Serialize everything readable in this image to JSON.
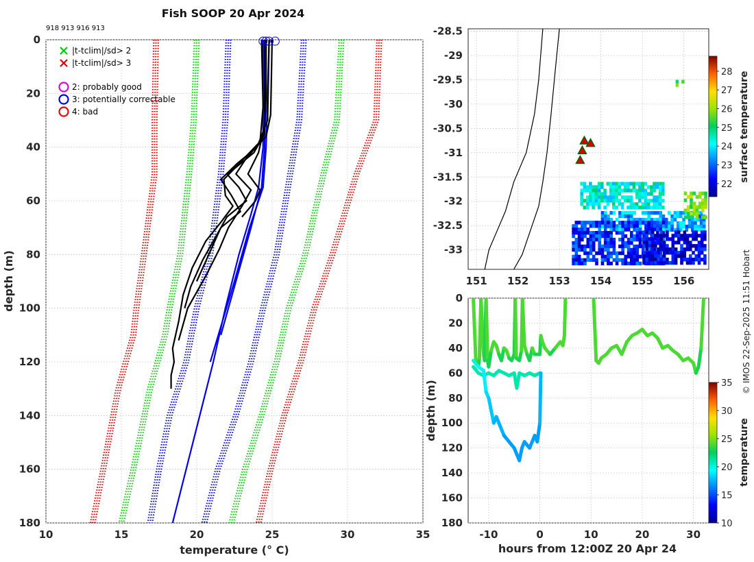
{
  "title": "Fish SOOP 20 Apr 2024",
  "fish_ids": "918 913 916 913",
  "credit": "© IMOS 22-Sep-2025 11:51 Hobart",
  "colors": {
    "flag2": "#00cc00",
    "flag3": "#dd0000",
    "blue": "#0000ee",
    "good": "#dd00dd",
    "bad": "#ee0000"
  },
  "legend": {
    "items": [
      {
        "marker": "x",
        "color": "#00cc00",
        "label": "|t-tclim|/sd> 2"
      },
      {
        "marker": "x",
        "color": "#dd0000",
        "label": "|t-tclim|/sd> 3"
      },
      {
        "marker": "o",
        "color": "#dd00dd",
        "label": "2: probably good"
      },
      {
        "marker": "o",
        "color": "#0000ee",
        "label": "3: potentially correctable"
      },
      {
        "marker": "o",
        "color": "#ee0000",
        "label": "4: bad"
      }
    ]
  },
  "chart_data": [
    {
      "id": "profile",
      "type": "line",
      "xlabel": "temperature (° C)",
      "ylabel": "depth (m)",
      "xlim": [
        10,
        35
      ],
      "ylim": [
        180,
        0
      ],
      "xticks": [
        10,
        15,
        20,
        25,
        30,
        35
      ],
      "yticks": [
        0,
        20,
        40,
        60,
        80,
        100,
        120,
        140,
        160,
        180
      ],
      "climatology_bounds": [
        {
          "name": "tclim-3sd",
          "color": "#dd0000",
          "depth": [
            0,
            30,
            50,
            80,
            100,
            110,
            130,
            160,
            180
          ],
          "values": [
            17.3,
            17.2,
            17.2,
            16.5,
            16.0,
            15.8,
            14.8,
            13.8,
            13.1
          ]
        },
        {
          "name": "tclim-2sd",
          "color": "#00cc00",
          "depth": [
            0,
            30,
            50,
            80,
            100,
            110,
            130,
            160,
            180
          ],
          "values": [
            20.0,
            19.8,
            19.5,
            18.9,
            18.2,
            17.9,
            16.9,
            15.8,
            15.0
          ]
        },
        {
          "name": "tclim-1sd",
          "color": "#0000ee",
          "depth": [
            0,
            30,
            50,
            80,
            100,
            120,
            140,
            160,
            180
          ],
          "values": [
            22.1,
            21.9,
            21.6,
            20.9,
            20.0,
            19.3,
            18.2,
            17.5,
            16.9
          ]
        },
        {
          "name": "tclim+1sd",
          "color": "#0000ee",
          "depth": [
            0,
            30,
            50,
            80,
            100,
            120,
            140,
            160,
            180
          ],
          "values": [
            27.1,
            26.8,
            26.2,
            25.3,
            24.4,
            23.6,
            22.6,
            21.4,
            20.5
          ]
        },
        {
          "name": "tclim+2sd",
          "color": "#00cc00",
          "depth": [
            0,
            30,
            50,
            80,
            100,
            120,
            140,
            160,
            180
          ],
          "values": [
            29.6,
            29.3,
            28.4,
            27.2,
            26.1,
            25.3,
            24.3,
            23.2,
            22.3
          ]
        },
        {
          "name": "tclim+3sd",
          "color": "#dd0000",
          "depth": [
            0,
            30,
            50,
            80,
            100,
            120,
            140,
            160,
            180
          ],
          "values": [
            32.1,
            31.9,
            30.6,
            29.0,
            27.8,
            26.9,
            25.8,
            24.9,
            24.1
          ]
        }
      ],
      "blue_profiles": [
        {
          "depth": [
            0,
            40,
            55,
            65,
            80,
            100,
            120,
            140,
            160,
            180
          ],
          "values": [
            24.4,
            24.4,
            24.1,
            23.6,
            22.8,
            21.9,
            21.1,
            20.2,
            19.3,
            18.4
          ]
        },
        {
          "depth": [
            0,
            40,
            55,
            70,
            90,
            110
          ],
          "values": [
            24.6,
            24.5,
            24.3,
            23.6,
            22.6,
            21.6
          ]
        },
        {
          "depth": [
            0,
            40,
            55,
            70,
            90,
            120
          ],
          "values": [
            24.8,
            24.6,
            24.4,
            23.5,
            22.5,
            20.9
          ]
        }
      ],
      "black_profiles": [
        {
          "depth": [
            0,
            20,
            35,
            42,
            48,
            52,
            58,
            62,
            68,
            75,
            85,
            95,
            105,
            115,
            120,
            125,
            130
          ],
          "values": [
            24.6,
            24.6,
            24.5,
            23.8,
            22.5,
            21.8,
            21.9,
            22.4,
            21.6,
            20.6,
            19.7,
            19.1,
            18.8,
            18.4,
            18.5,
            18.3,
            18.3
          ]
        },
        {
          "depth": [
            0,
            25,
            38,
            45,
            50,
            55,
            60,
            66,
            72,
            82,
            92,
            100
          ],
          "values": [
            24.3,
            24.4,
            24.2,
            23.0,
            22.0,
            22.8,
            23.3,
            22.0,
            21.4,
            20.4,
            19.6,
            19.2
          ]
        },
        {
          "depth": [
            0,
            30,
            40,
            46,
            52,
            58,
            64,
            70,
            80,
            90
          ],
          "values": [
            24.8,
            24.7,
            24.0,
            22.7,
            21.6,
            22.3,
            22.9,
            21.6,
            20.8,
            20.0
          ]
        },
        {
          "depth": [
            0,
            28,
            36,
            44,
            50,
            56,
            62,
            70,
            78,
            88,
            100,
            112
          ],
          "values": [
            25.0,
            24.9,
            24.6,
            23.3,
            22.6,
            23.6,
            23.0,
            22.1,
            21.5,
            20.6,
            19.4,
            18.8
          ]
        },
        {
          "depth": [
            0,
            32,
            42,
            50,
            56,
            60,
            66
          ],
          "values": [
            24.5,
            24.5,
            24.1,
            23.4,
            24.2,
            23.9,
            23.0
          ]
        }
      ],
      "flag_circles": [
        24.4,
        24.6,
        24.8,
        25.2
      ]
    },
    {
      "id": "map",
      "type": "heatmap",
      "xlim": [
        150.8,
        156.6
      ],
      "ylim": [
        -33.4,
        -28.45
      ],
      "xticks": [
        151,
        152,
        153,
        154,
        155,
        156
      ],
      "yticks": [
        -28.5,
        -29,
        -29.5,
        -30,
        -30.5,
        -31,
        -31.5,
        -32,
        -32.5,
        -33
      ],
      "colorbar": {
        "label": "surface temperature",
        "range": [
          21.3,
          28.8
        ],
        "ticks": [
          22,
          23,
          24,
          25,
          26,
          27,
          28
        ]
      },
      "coastline": {
        "lon": [
          152.6,
          152.5,
          152.4,
          152.2,
          151.9,
          151.7,
          151.5,
          151.3,
          151.2
        ],
        "lat": [
          -28.45,
          -29.5,
          -30.2,
          -31.0,
          -31.6,
          -32.2,
          -32.6,
          -33.0,
          -33.4
        ]
      },
      "contour": {
        "lon": [
          153.0,
          152.9,
          152.8,
          152.7,
          152.6,
          152.5,
          152.3,
          152.1,
          151.9
        ],
        "lat": [
          -28.45,
          -29.3,
          -30.2,
          -31.0,
          -31.6,
          -32.1,
          -32.6,
          -33.1,
          -33.4
        ]
      },
      "deployments": [
        {
          "lon": 153.6,
          "lat": -30.75
        },
        {
          "lon": 153.75,
          "lat": -30.8
        },
        {
          "lon": 153.55,
          "lat": -30.95
        },
        {
          "lon": 153.5,
          "lat": -31.15
        }
      ],
      "sst_patches": [
        {
          "lon": [
            153.5,
            155.5
          ],
          "lat": [
            -31.6,
            -32.1
          ],
          "value": 24.3
        },
        {
          "lon": [
            154.0,
            156.5
          ],
          "lat": [
            -32.2,
            -32.6
          ],
          "value": 23.5
        },
        {
          "lon": [
            153.3,
            155.5
          ],
          "lat": [
            -32.4,
            -33.3
          ],
          "value": 22.5
        },
        {
          "lon": [
            155.0,
            156.5
          ],
          "lat": [
            -32.6,
            -33.3
          ],
          "value": 22.0
        },
        {
          "lon": [
            156.0,
            156.5
          ],
          "lat": [
            -31.8,
            -32.3
          ],
          "value": 25.7
        },
        {
          "lon": [
            155.8,
            156.0
          ],
          "lat": [
            -29.5,
            -29.6
          ],
          "value": 25.5
        }
      ]
    },
    {
      "id": "timeseries",
      "type": "scatter",
      "xlabel": "hours from 12:00Z 20 Apr 24",
      "ylabel": "depth (m)",
      "xlim": [
        -14,
        33
      ],
      "ylim": [
        180,
        0
      ],
      "xticks": [
        -10,
        0,
        10,
        20,
        30
      ],
      "yticks": [
        0,
        20,
        40,
        60,
        80,
        100,
        120,
        140,
        160,
        180
      ],
      "colorbar": {
        "label": "temperature",
        "range": [
          10,
          35
        ],
        "ticks": [
          10,
          15,
          20,
          25,
          30,
          35
        ]
      },
      "tracks": [
        {
          "hours": [
            -13,
            -12.5,
            -12,
            -11.8,
            -11.5,
            -11,
            -10.8,
            -10.5,
            -10.2,
            -10,
            -9.5,
            -9,
            -8.5,
            -8,
            -7.5,
            -7,
            -6.5,
            -6,
            -5.5,
            -5,
            -4.8,
            -4.6,
            -4,
            -3.6,
            -3.4,
            -3,
            -2.5,
            -2,
            -1.5,
            -1,
            0,
            0.2,
            0.5,
            1,
            2,
            3,
            4,
            4.5,
            4.8,
            5
          ],
          "depth": [
            0,
            50,
            55,
            48,
            0,
            45,
            50,
            0,
            50,
            55,
            42,
            35,
            38,
            45,
            50,
            40,
            42,
            48,
            50,
            45,
            0,
            48,
            50,
            42,
            0,
            38,
            45,
            50,
            40,
            45,
            45,
            30,
            35,
            40,
            45,
            40,
            35,
            38,
            30,
            0
          ],
          "temps": [
            24,
            24,
            23,
            24,
            24,
            24,
            23,
            24,
            23,
            23,
            24,
            24,
            24,
            23,
            23,
            24,
            24,
            23,
            23,
            23,
            24,
            23,
            23,
            24,
            24,
            24,
            23,
            23,
            24,
            23,
            23,
            24,
            24,
            24,
            23,
            24,
            24,
            24,
            24,
            24
          ]
        },
        {
          "hours": [
            -13,
            -12,
            -11,
            -10,
            -9,
            -8,
            -7,
            -6,
            -5,
            -4.5,
            -4,
            -3,
            -2,
            -1,
            0
          ],
          "depth": [
            55,
            60,
            62,
            60,
            62,
            58,
            60,
            62,
            60,
            72,
            60,
            62,
            60,
            62,
            60
          ],
          "temps": [
            21,
            21,
            21,
            21,
            21,
            21,
            21,
            21,
            21,
            21,
            21,
            21,
            21,
            21,
            21
          ]
        },
        {
          "hours": [
            -13,
            -12,
            -11,
            -10.5,
            -10,
            -9.5,
            -9,
            -8.5,
            -8,
            -7,
            -6,
            -5,
            -4.5,
            -4,
            -3.5,
            -3,
            -2,
            -1,
            -0.5,
            0,
            0.2
          ],
          "depth": [
            50,
            55,
            58,
            75,
            80,
            90,
            100,
            95,
            100,
            110,
            115,
            120,
            125,
            130,
            120,
            115,
            120,
            110,
            115,
            100,
            60
          ],
          "temps": [
            20,
            19.5,
            19,
            18.5,
            18,
            18,
            17.5,
            17.5,
            17.5,
            17,
            17,
            17,
            17,
            17,
            17,
            17,
            17,
            17,
            17,
            17.5,
            20
          ]
        },
        {
          "hours": [
            10.5,
            11,
            11.5,
            12,
            13,
            14,
            15,
            16,
            17,
            18,
            19,
            20,
            21,
            22,
            23,
            24,
            25,
            26,
            27,
            28,
            29,
            30,
            30.5,
            31,
            31.5,
            32
          ],
          "depth": [
            0,
            50,
            52,
            48,
            45,
            40,
            38,
            45,
            35,
            30,
            28,
            25,
            30,
            28,
            32,
            40,
            38,
            42,
            45,
            50,
            48,
            52,
            60,
            55,
            40,
            0
          ],
          "temps": [
            24,
            24,
            24,
            24,
            24,
            24,
            24,
            24,
            24,
            24,
            24,
            24,
            24,
            24,
            24,
            24,
            24,
            24,
            24,
            24,
            24,
            24,
            23,
            23,
            24,
            24
          ]
        }
      ]
    }
  ]
}
